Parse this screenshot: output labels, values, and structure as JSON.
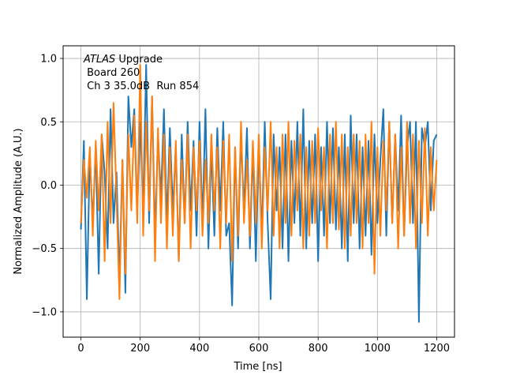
{
  "chart_data": {
    "type": "line",
    "xlabel": "Time [ns]",
    "ylabel": "Normalized Amplitude (A.U.)",
    "xlim": [
      -60,
      1260
    ],
    "ylim": [
      -1.2,
      1.1
    ],
    "xticks": [
      0,
      200,
      400,
      600,
      800,
      1000,
      1200
    ],
    "xtick_labels": [
      "0",
      "200",
      "400",
      "600",
      "800",
      "1000",
      "1200"
    ],
    "yticks": [
      -1.0,
      -0.5,
      0.0,
      0.5,
      1.0
    ],
    "ytick_labels": [
      "−1.0",
      "−0.5",
      "0.0",
      "0.5",
      "1.0"
    ],
    "grid": true,
    "annotation": {
      "italic_part": "ATLAS",
      "line1_rest": " Upgrade",
      "line2": " Board 260",
      "line3": " Ch 3 35.0dB  Run 854"
    },
    "series": [
      {
        "color": "#1f77b4",
        "x": [
          0,
          10,
          20,
          30,
          40,
          50,
          60,
          70,
          80,
          90,
          100,
          110,
          120,
          130,
          140,
          150,
          160,
          170,
          180,
          190,
          200,
          210,
          220,
          230,
          240,
          250,
          260,
          270,
          280,
          290,
          300,
          310,
          320,
          330,
          340,
          350,
          360,
          370,
          380,
          390,
          400,
          410,
          420,
          430,
          440,
          450,
          460,
          470,
          480,
          490,
          500,
          510,
          520,
          530,
          540,
          550,
          560,
          570,
          580,
          590,
          600,
          610,
          620,
          630,
          640,
          650,
          660,
          670,
          680,
          690,
          700,
          710,
          720,
          730,
          740,
          750,
          760,
          770,
          780,
          790,
          800,
          810,
          820,
          830,
          840,
          850,
          860,
          870,
          880,
          890,
          900,
          910,
          920,
          930,
          940,
          950,
          960,
          970,
          980,
          990,
          1000,
          1010,
          1020,
          1030,
          1040,
          1050,
          1060,
          1070,
          1080,
          1090,
          1100,
          1110,
          1120,
          1130,
          1140,
          1150,
          1160,
          1170,
          1180,
          1190,
          1200
        ],
        "values": [
          -0.35,
          0.35,
          -0.9,
          0.25,
          -0.3,
          0.3,
          -0.7,
          0.4,
          0.1,
          -0.5,
          0.6,
          -0.3,
          0.1,
          -0.75,
          0.2,
          -0.85,
          0.7,
          0.3,
          0.6,
          -0.2,
          0.5,
          -0.2,
          0.95,
          -0.3,
          0.7,
          -0.4,
          0.4,
          -0.1,
          0.6,
          -0.3,
          0.45,
          -0.2,
          0.3,
          -0.6,
          0.4,
          -0.3,
          0.5,
          -0.2,
          0.35,
          -0.4,
          0.5,
          -0.3,
          0.6,
          -0.5,
          0.3,
          -0.4,
          0.45,
          -0.2,
          0.5,
          -0.4,
          -0.3,
          -0.95,
          0.3,
          -0.5,
          0.4,
          -0.2,
          0.45,
          -0.5,
          0.3,
          -0.6,
          0.35,
          -0.4,
          0.5,
          -0.3,
          -0.9,
          0.4,
          -0.2,
          0.3,
          -0.5,
          0.4,
          -0.6,
          0.35,
          -0.3,
          0.5,
          -0.4,
          0.6,
          -0.5,
          0.35,
          -0.3,
          0.4,
          -0.6,
          0.3,
          -0.4,
          0.5,
          -0.3,
          0.45,
          -0.35,
          0.3,
          -0.5,
          0.4,
          -0.6,
          0.55,
          -0.3,
          0.4,
          -0.5,
          0.3,
          -0.4,
          0.35,
          -0.55,
          0.4,
          -0.3,
          0.2,
          0.6,
          -0.4,
          0.5,
          -0.3,
          0.4,
          -0.2,
          0.55,
          -0.4,
          0.3,
          0.5,
          -0.3,
          0.5,
          -1.08,
          0.45,
          0.3,
          0.5,
          -0.2,
          0.35,
          0.4
        ]
      },
      {
        "color": "#ff7f0e",
        "x": [
          0,
          10,
          20,
          30,
          40,
          50,
          60,
          70,
          80,
          90,
          100,
          110,
          120,
          130,
          140,
          150,
          160,
          170,
          180,
          190,
          200,
          210,
          220,
          230,
          240,
          250,
          260,
          270,
          280,
          290,
          300,
          310,
          320,
          330,
          340,
          350,
          360,
          370,
          380,
          390,
          400,
          410,
          420,
          430,
          440,
          450,
          460,
          470,
          480,
          490,
          500,
          510,
          520,
          530,
          540,
          550,
          560,
          570,
          580,
          590,
          600,
          610,
          620,
          630,
          640,
          650,
          660,
          670,
          680,
          690,
          700,
          710,
          720,
          730,
          740,
          750,
          760,
          770,
          780,
          790,
          800,
          810,
          820,
          830,
          840,
          850,
          860,
          870,
          880,
          890,
          900,
          910,
          920,
          930,
          940,
          950,
          960,
          970,
          980,
          990,
          1000,
          1010,
          1020,
          1030,
          1040,
          1050,
          1060,
          1070,
          1080,
          1090,
          1100,
          1110,
          1120,
          1130,
          1140,
          1150,
          1160,
          1170,
          1180,
          1190,
          1200
        ],
        "values": [
          -0.3,
          0.2,
          -0.1,
          0.3,
          -0.4,
          0.35,
          -0.2,
          0.4,
          -0.6,
          0.5,
          -0.3,
          0.65,
          -0.1,
          -0.9,
          0.2,
          -0.7,
          0.4,
          -0.2,
          0.55,
          -0.3,
          0.95,
          -0.4,
          0.5,
          -0.2,
          0.7,
          -0.6,
          0.45,
          -0.3,
          0.4,
          -0.5,
          0.3,
          -0.4,
          0.35,
          -0.6,
          0.2,
          -0.3,
          0.4,
          -0.5,
          0.3,
          -0.2,
          0.35,
          -0.4,
          0.2,
          -0.3,
          0.4,
          -0.2,
          0.3,
          -0.5,
          0.35,
          -0.3,
          0.4,
          -0.6,
          0.3,
          -0.4,
          0.5,
          -0.3,
          0.2,
          -0.4,
          0.35,
          -0.3,
          0.4,
          -0.5,
          0.3,
          -0.2,
          0.5,
          -0.4,
          0.3,
          -0.5,
          0.4,
          -0.3,
          0.5,
          -0.4,
          0.35,
          -0.2,
          0.4,
          -0.5,
          0.3,
          -0.4,
          0.35,
          -0.3,
          0.45,
          -0.2,
          0.3,
          -0.5,
          0.4,
          -0.3,
          0.5,
          -0.35,
          0.4,
          -0.5,
          0.3,
          -0.4,
          0.4,
          -0.3,
          0.35,
          -0.5,
          0.4,
          -0.3,
          0.5,
          -0.7,
          0.3,
          -0.4,
          0.35,
          -0.2,
          0.5,
          -0.3,
          0.4,
          -0.5,
          0.3,
          -0.4,
          0.5,
          -0.3,
          0.4,
          -0.5,
          0.35,
          -0.3,
          0.45,
          -0.4,
          0.3,
          -0.2,
          0.2
        ]
      }
    ]
  }
}
